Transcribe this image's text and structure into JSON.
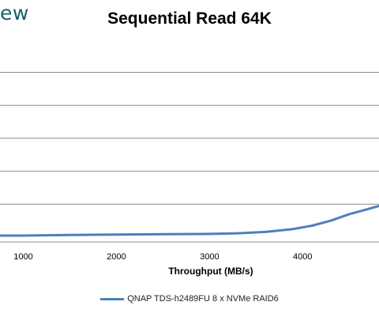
{
  "logo": {
    "text": "ew"
  },
  "chart_data": {
    "type": "line",
    "title": "Sequential Read 64K",
    "xlabel": "Throughput (MB/s)",
    "ylabel": "",
    "xlim": [
      750,
      4820
    ],
    "ylim": [
      0,
      7
    ],
    "x_ticks": [
      1000,
      2000,
      3000,
      4000
    ],
    "y_gridlines": [
      1,
      2,
      3,
      4,
      5,
      6,
      7
    ],
    "grid": true,
    "legend_position": "bottom",
    "series": [
      {
        "name": "QNAP TDS-h2489FU 8 x NVMe RAID6",
        "color": "#4f7ebd",
        "points": [
          [
            750,
            0.0
          ],
          [
            1000,
            0.0
          ],
          [
            1500,
            0.02
          ],
          [
            2000,
            0.03
          ],
          [
            2500,
            0.04
          ],
          [
            3000,
            0.05
          ],
          [
            3300,
            0.07
          ],
          [
            3600,
            0.11
          ],
          [
            3900,
            0.2
          ],
          [
            4100,
            0.3
          ],
          [
            4300,
            0.45
          ],
          [
            4500,
            0.65
          ],
          [
            4700,
            0.8
          ],
          [
            4820,
            0.9
          ]
        ]
      }
    ]
  }
}
